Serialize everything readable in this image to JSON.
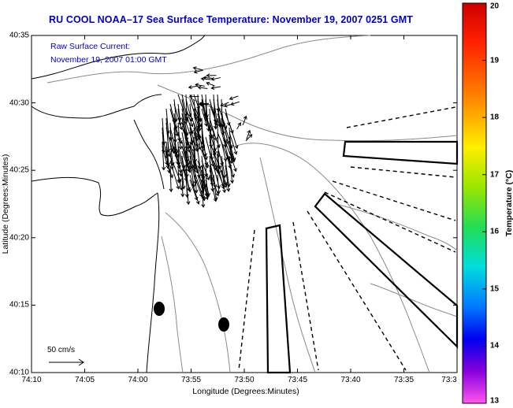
{
  "title": "RU COOL  NOAA–17  Sea Surface Temperature:  November 19, 2007 0251 GMT",
  "overlay": {
    "line1": "Raw Surface Current:",
    "line2": "November 19, 2007 01:00 GMT"
  },
  "x_axis": {
    "label": "Longitude (Degrees:Minutes)",
    "ticks": [
      "74:10",
      "74:05",
      "74:00",
      "73:55",
      "73:50",
      "73:45",
      "73:40",
      "73:35",
      "73:3"
    ]
  },
  "y_axis": {
    "label": "Latitude (Degrees:Minutes)",
    "ticks": [
      "40:35",
      "40:30",
      "40:25",
      "40:20",
      "40:15",
      "40:10"
    ]
  },
  "colorbar": {
    "label": "Temperature (°C)",
    "ticks": [
      "20",
      "19",
      "18",
      "17",
      "16",
      "15",
      "14",
      "13"
    ],
    "colors": [
      "#ff0000",
      "#ff8800",
      "#ffee00",
      "#aaee00",
      "#22dd44",
      "#00dddd",
      "#0077ff",
      "#0000ff",
      "#8800dd",
      "#ff44dd"
    ]
  },
  "scale_vector": {
    "label": "50 cm/s"
  }
}
